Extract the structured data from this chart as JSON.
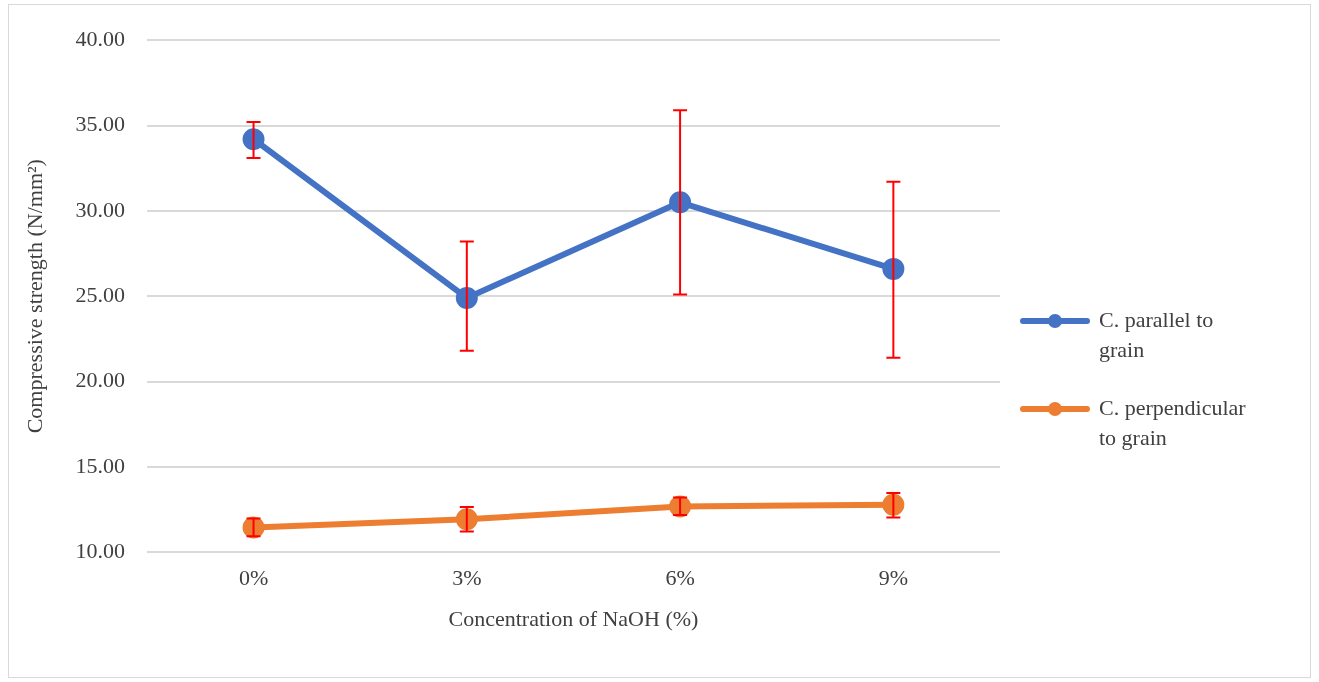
{
  "chart_data": {
    "type": "line",
    "xlabel": "Concentration of NaOH (%)",
    "ylabel": "Compressive strength (N/mm²)",
    "categories": [
      "0%",
      "3%",
      "6%",
      "9%"
    ],
    "series": [
      {
        "name": "C. parallel to grain",
        "color": "#4472c4",
        "values": [
          34.2,
          24.9,
          30.5,
          26.6
        ],
        "errors": [
          [
            33.1,
            35.2
          ],
          [
            21.8,
            28.2
          ],
          [
            25.1,
            35.9
          ],
          [
            21.4,
            31.7
          ]
        ]
      },
      {
        "name": "C. perpendicular to grain",
        "color": "#ed7d31",
        "values": [
          11.45,
          11.93,
          12.68,
          12.78
        ],
        "errors": [
          [
            10.93,
            11.98
          ],
          [
            11.22,
            12.65
          ],
          [
            12.18,
            13.2
          ],
          [
            12.04,
            13.47
          ]
        ]
      }
    ],
    "ylim": [
      10,
      40
    ],
    "yticks": [
      {
        "value": 10,
        "label": "10.00"
      },
      {
        "value": 15,
        "label": "15.00"
      },
      {
        "value": 20,
        "label": "20.00"
      },
      {
        "value": 25,
        "label": "25.00"
      },
      {
        "value": 30,
        "label": "30.00"
      },
      {
        "value": 35,
        "label": "35.00"
      },
      {
        "value": 40,
        "label": "40.00"
      }
    ],
    "grid": "y",
    "legend": "right",
    "marker": "circle",
    "line_style": "solid"
  }
}
